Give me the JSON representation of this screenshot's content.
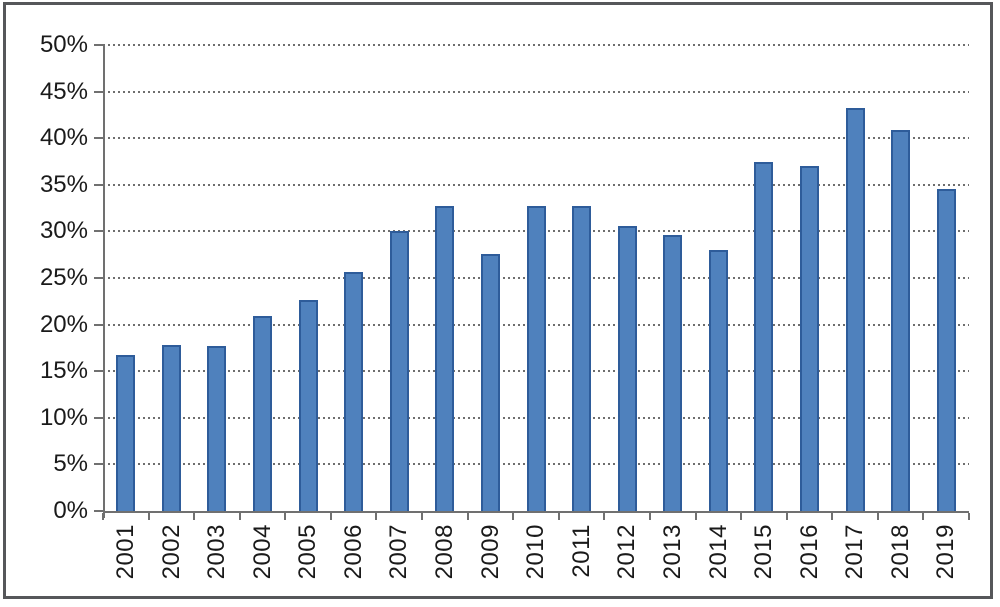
{
  "chart_data": {
    "type": "bar",
    "title": "",
    "xlabel": "",
    "ylabel": "",
    "categories": [
      "2001",
      "2002",
      "2003",
      "2004",
      "2005",
      "2006",
      "2007",
      "2008",
      "2009",
      "2010",
      "2011",
      "2012",
      "2013",
      "2014",
      "2015",
      "2016",
      "2017",
      "2018",
      "2019"
    ],
    "values": [
      16.7,
      17.8,
      17.7,
      20.9,
      22.6,
      25.6,
      30.0,
      32.7,
      27.6,
      32.7,
      32.7,
      30.6,
      29.6,
      28.0,
      37.5,
      37.0,
      43.2,
      40.9,
      34.5
    ],
    "value_unit": "%",
    "ylim": [
      0,
      50
    ],
    "y_tick_step": 5,
    "y_tick_labels": [
      "0%",
      "5%",
      "10%",
      "15%",
      "20%",
      "25%",
      "30%",
      "35%",
      "40%",
      "45%",
      "50%"
    ],
    "grid": "horizontal-dotted",
    "legend_position": "none",
    "x_tick_label_rotation": "vertical-bottom-up",
    "colors": {
      "bar_fill": "#4f81bd",
      "bar_border": "#2e5c9a",
      "axis_line": "#707070",
      "gridline": "#6e6e6e",
      "tick_label": "#1a1a1a",
      "frame_border": "#56575a",
      "background": "#ffffff"
    }
  }
}
